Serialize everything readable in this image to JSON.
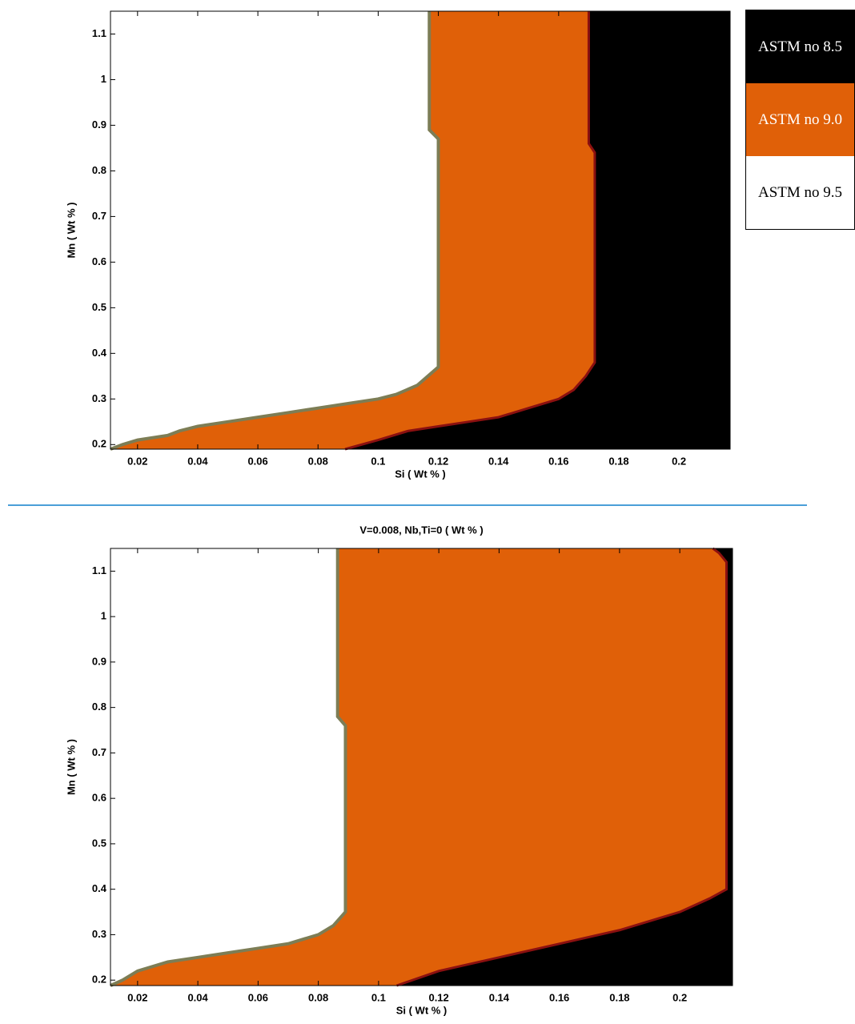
{
  "chart_data": [
    {
      "type": "region",
      "xlabel": "Si ( Wt % )",
      "ylabel": "Mn ( Wt % )",
      "xlim": [
        0.011,
        0.217
      ],
      "ylim": [
        0.19,
        1.15
      ],
      "xticks": [
        0.02,
        0.04,
        0.06,
        0.08,
        0.1,
        0.12,
        0.14,
        0.16,
        0.18,
        0.2
      ],
      "yticks": [
        0.2,
        0.3,
        0.4,
        0.5,
        0.6,
        0.7,
        0.8,
        0.9,
        1,
        1.1
      ],
      "regions": [
        {
          "color": "#ffffff",
          "x": [
            0.011,
            0.015,
            0.02,
            0.03,
            0.034,
            0.04,
            0.05,
            0.06,
            0.07,
            0.08,
            0.09,
            0.1,
            0.106,
            0.113,
            0.12,
            0.12,
            0.117,
            0.117
          ],
          "y": [
            0.19,
            0.2,
            0.21,
            0.22,
            0.23,
            0.24,
            0.25,
            0.26,
            0.27,
            0.28,
            0.29,
            0.3,
            0.31,
            0.33,
            0.37,
            0.87,
            0.89,
            1.15
          ]
        },
        {
          "color": "#e06008",
          "x": [
            0.089,
            0.1,
            0.11,
            0.12,
            0.13,
            0.14,
            0.15,
            0.16,
            0.165,
            0.169,
            0.172,
            0.172,
            0.17,
            0.17
          ],
          "y": [
            0.19,
            0.21,
            0.23,
            0.24,
            0.25,
            0.26,
            0.28,
            0.3,
            0.32,
            0.35,
            0.38,
            0.84,
            0.86,
            1.15
          ]
        },
        {
          "color": "#000000"
        }
      ],
      "legend": [
        {
          "label": "ASTM no 8.5",
          "color": "#000000",
          "text_color": "#ffffff"
        },
        {
          "label": "ASTM no 9.0",
          "color": "#e06008",
          "text_color": "#ffffff"
        },
        {
          "label": "ASTM no 9.5",
          "color": "#ffffff",
          "text_color": "#000000"
        }
      ]
    },
    {
      "type": "region",
      "title": "V=0.008, Nb,Ti=0 ( Wt % )",
      "xlabel": "Si ( Wt % )",
      "ylabel": "Mn ( Wt % )",
      "xlim": [
        0.011,
        0.2175
      ],
      "ylim": [
        0.188,
        1.15
      ],
      "xticks": [
        0.02,
        0.04,
        0.06,
        0.08,
        0.1,
        0.12,
        0.14,
        0.16,
        0.18,
        0.2
      ],
      "yticks": [
        0.2,
        0.3,
        0.4,
        0.5,
        0.6,
        0.7,
        0.8,
        0.9,
        1,
        1.1
      ],
      "regions": [
        {
          "color": "#ffffff",
          "x": [
            0.011,
            0.015,
            0.02,
            0.03,
            0.04,
            0.05,
            0.06,
            0.07,
            0.08,
            0.085,
            0.089,
            0.089,
            0.0864,
            0.0864
          ],
          "y": [
            0.188,
            0.2,
            0.22,
            0.24,
            0.25,
            0.26,
            0.27,
            0.28,
            0.3,
            0.32,
            0.35,
            0.76,
            0.78,
            1.15
          ]
        },
        {
          "color": "#e06008",
          "x": [
            0.106,
            0.12,
            0.14,
            0.16,
            0.18,
            0.2,
            0.21,
            0.2155,
            0.2155,
            0.213,
            0.211
          ],
          "y": [
            0.188,
            0.22,
            0.25,
            0.28,
            0.31,
            0.35,
            0.38,
            0.4,
            1.12,
            1.14,
            1.15
          ]
        },
        {
          "color": "#000000"
        }
      ]
    }
  ]
}
